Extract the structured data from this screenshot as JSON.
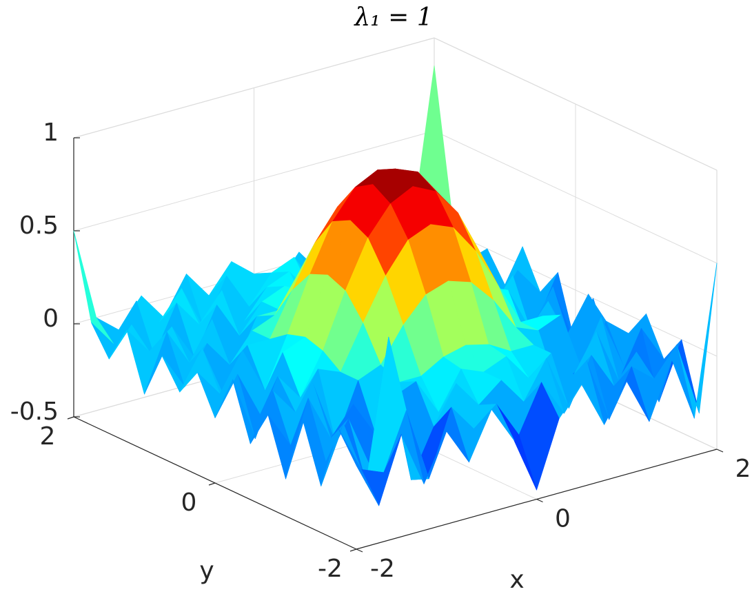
{
  "chart_data": {
    "type": "surface",
    "title": "λ₁ = 1",
    "xlabel": "x",
    "ylabel": "y",
    "colormap": "jet",
    "grid": true,
    "x": [
      -2,
      -1.75,
      -1.5,
      -1.25,
      -1,
      -0.75,
      -0.5,
      -0.25,
      0,
      0.25,
      0.5,
      0.75,
      1,
      1.25,
      1.5,
      1.75,
      2
    ],
    "y": [
      -2,
      -1.75,
      -1.5,
      -1.25,
      -1,
      -0.75,
      -0.5,
      -0.25,
      0,
      0.25,
      0.5,
      0.75,
      1,
      1.25,
      1.5,
      1.75,
      2
    ],
    "z": [
      [
        -0.05,
        -0.3,
        0.05,
        -0.25,
        0.0,
        -0.2,
        0.05,
        -0.15,
        -0.45,
        -0.1,
        0.05,
        -0.2,
        0.0,
        -0.25,
        0.05,
        -0.3,
        0.5
      ],
      [
        0.1,
        -0.15,
        -0.2,
        0.1,
        -0.3,
        0.05,
        -0.1,
        0.0,
        -0.2,
        0.05,
        -0.15,
        0.1,
        -0.25,
        0.0,
        -0.1,
        0.05,
        -0.35
      ],
      [
        -0.25,
        0.05,
        -0.3,
        0.45,
        -0.35,
        -0.1,
        0.1,
        -0.05,
        0.05,
        -0.1,
        0.1,
        -0.2,
        0.05,
        -0.15,
        0.0,
        -0.3,
        0.0
      ],
      [
        0.05,
        -0.2,
        0.0,
        -0.3,
        0.05,
        0.1,
        -0.1,
        0.1,
        0.05,
        0.1,
        -0.05,
        0.05,
        -0.1,
        0.1,
        -0.2,
        0.05,
        -0.15
      ],
      [
        -0.3,
        0.1,
        -0.15,
        0.0,
        -0.2,
        0.05,
        0.05,
        0.12,
        0.15,
        0.12,
        0.05,
        0.05,
        -0.2,
        -0.15,
        0.1,
        -0.2,
        0.05
      ],
      [
        0.0,
        -0.2,
        0.1,
        -0.25,
        0.05,
        0.1,
        0.28,
        0.41,
        0.45,
        0.41,
        0.28,
        0.1,
        0.05,
        0.1,
        -0.25,
        0.0,
        -0.1
      ],
      [
        -0.2,
        0.05,
        -0.1,
        0.1,
        0.05,
        0.28,
        0.5,
        0.66,
        0.71,
        0.66,
        0.5,
        0.28,
        0.05,
        0.05,
        -0.1,
        0.1,
        -0.25
      ],
      [
        0.1,
        -0.25,
        0.05,
        -0.1,
        0.12,
        0.41,
        0.66,
        0.81,
        0.87,
        0.81,
        0.66,
        0.41,
        0.12,
        -0.1,
        0.05,
        -0.2,
        0.0
      ],
      [
        -0.15,
        0.05,
        -0.2,
        0.1,
        0.15,
        0.45,
        0.71,
        0.87,
        0.92,
        0.87,
        0.71,
        0.45,
        0.15,
        0.1,
        -0.15,
        0.05,
        -0.3
      ],
      [
        0.05,
        -0.1,
        0.1,
        -0.15,
        0.12,
        0.41,
        0.66,
        0.81,
        0.87,
        0.81,
        0.66,
        0.41,
        0.12,
        -0.05,
        0.1,
        -0.2,
        0.05
      ],
      [
        -0.1,
        0.1,
        -0.2,
        0.05,
        0.05,
        0.28,
        0.5,
        0.66,
        0.71,
        0.66,
        0.5,
        0.28,
        0.05,
        0.1,
        -0.15,
        0.05,
        -0.1
      ],
      [
        0.05,
        -0.15,
        0.05,
        -0.1,
        0.05,
        0.1,
        0.28,
        0.41,
        0.45,
        0.41,
        0.28,
        0.1,
        0.05,
        -0.1,
        0.05,
        -0.15,
        0.1
      ],
      [
        -0.2,
        0.1,
        -0.1,
        0.1,
        -0.2,
        0.05,
        0.05,
        0.12,
        0.15,
        0.12,
        0.05,
        0.05,
        -0.2,
        0.1,
        -0.1,
        0.05,
        -0.15
      ],
      [
        0.1,
        -0.05,
        0.05,
        -0.15,
        0.1,
        -0.1,
        0.05,
        0.1,
        -0.05,
        0.1,
        0.0,
        -0.1,
        0.05,
        -0.1,
        0.1,
        -0.05,
        0.0
      ],
      [
        -0.1,
        0.05,
        -0.15,
        0.1,
        -0.05,
        0.1,
        -0.1,
        0.05,
        0.1,
        -0.05,
        0.1,
        0.0,
        -0.15,
        0.05,
        -0.1,
        0.1,
        -0.1
      ],
      [
        0.05,
        -0.1,
        0.1,
        -0.05,
        0.1,
        -0.15,
        0.1,
        -0.1,
        0.05,
        0.1,
        -0.1,
        0.05,
        0.1,
        -0.1,
        0.05,
        -0.1,
        0.1
      ],
      [
        0.5,
        0.0,
        -0.1,
        0.05,
        -0.1,
        0.1,
        -0.05,
        0.1,
        0.0,
        -0.1,
        0.05,
        -0.1,
        0.1,
        -0.05,
        0.1,
        0.0,
        0.85
      ]
    ],
    "xlim": [
      -2,
      2
    ],
    "ylim": [
      -2,
      2
    ],
    "zlim": [
      -0.5,
      1
    ],
    "xticks": [
      -2,
      0,
      2
    ],
    "yticks": [
      -2,
      0,
      2
    ],
    "zticks": [
      -0.5,
      0,
      0.5,
      1
    ]
  }
}
